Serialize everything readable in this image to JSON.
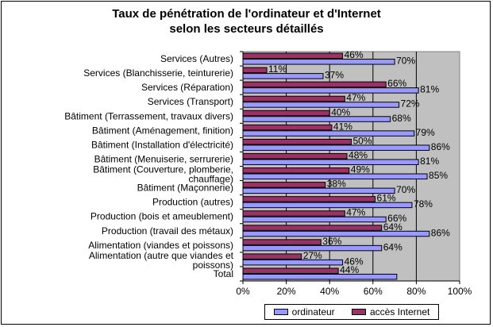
{
  "chart_data": {
    "type": "bar",
    "orientation": "horizontal",
    "title": "Taux de pénétration de l'ordinateur et d'Internet selon les secteurs détaillés",
    "title_lines": [
      "Taux de pénétration de l'ordinateur et d'Internet",
      "selon les secteurs détaillés"
    ],
    "categories": [
      "Services (Autres)",
      "Services (Blanchisserie, teinturerie)",
      "Services (Réparation)",
      "Services (Transport)",
      "Bâtiment (Terrassement, travaux divers)",
      "Bâtiment (Aménagement, finition)",
      "Bâtiment (Installation d'électricité)",
      "Bâtiment (Menuiserie, serrurerie)",
      "Bâtiment (Couverture, plomberie, chauffage)",
      "Bâtiment (Maçonnerie)",
      "Production (autres)",
      "Production (bois et ameublement)",
      "Production (travail des métaux)",
      "Alimentation (viandes et poissons)",
      "Alimentation (autre que viandes et poissons)",
      "Total"
    ],
    "category_lines": [
      [
        "Services (Autres)"
      ],
      [
        "Services (Blanchisserie, teinturerie)"
      ],
      [
        "Services (Réparation)"
      ],
      [
        "Services (Transport)"
      ],
      [
        "Bâtiment (Terrassement, travaux divers)"
      ],
      [
        "Bâtiment (Aménagement, finition)"
      ],
      [
        "Bâtiment (Installation d'électricité)"
      ],
      [
        "Bâtiment (Menuiserie, serrurerie)"
      ],
      [
        "Bâtiment (Couverture, plomberie,",
        "chauffage)"
      ],
      [
        "Bâtiment (Maçonnerie)"
      ],
      [
        "Production (autres)"
      ],
      [
        "Production (bois et ameublement)"
      ],
      [
        "Production (travail des métaux)"
      ],
      [
        "Alimentation (viandes et poissons)"
      ],
      [
        "Alimentation (autre que viandes et",
        "poissons)"
      ],
      [
        "Total"
      ]
    ],
    "series": [
      {
        "name": "ordinateur",
        "values": [
          70,
          37,
          81,
          72,
          68,
          79,
          86,
          81,
          85,
          70,
          78,
          66,
          86,
          64,
          46,
          71
        ],
        "labels": [
          "70%",
          "37%",
          "81%",
          "72%",
          "68%",
          "79%",
          "86%",
          "81%",
          "85%",
          "70%",
          "78%",
          "66%",
          "86%",
          "64%",
          "46%",
          ""
        ]
      },
      {
        "name": "accès Internet",
        "values": [
          46,
          11,
          66,
          47,
          40,
          41,
          50,
          48,
          49,
          38,
          61,
          47,
          64,
          36,
          27,
          44
        ],
        "labels": [
          "46%",
          "11%",
          "66%",
          "47%",
          "40%",
          "41%",
          "50%",
          "48%",
          "49%",
          "38%",
          "61%",
          "47%",
          "64%",
          "36%",
          "27%",
          "44%"
        ]
      }
    ],
    "xlim": [
      0,
      100
    ],
    "xticks": [
      0,
      20,
      40,
      60,
      80,
      100
    ],
    "xtick_labels": [
      "0%",
      "20%",
      "40%",
      "60%",
      "80%",
      "100%"
    ],
    "grid": true,
    "legend_position": "bottom",
    "colors": {
      "ordinateur": "#9999ff",
      "acces_internet": "#993366",
      "plot_background": "#c0c0c0",
      "grid": "#000000"
    }
  }
}
